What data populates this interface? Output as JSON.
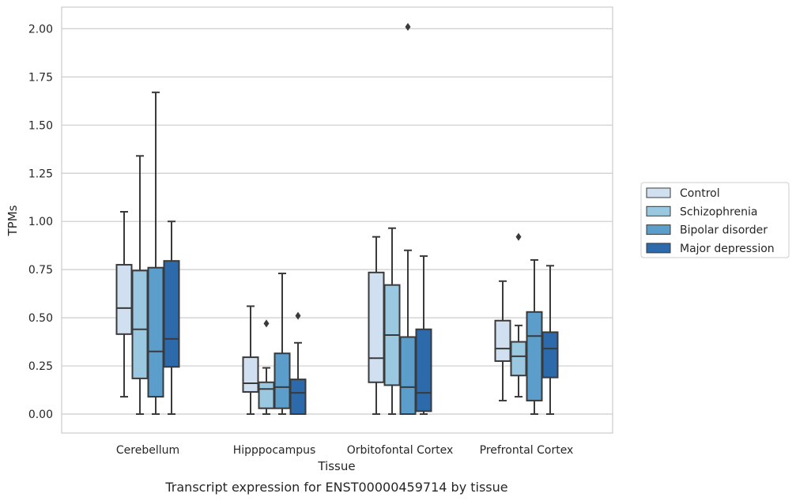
{
  "chart_data": {
    "type": "box",
    "caption": "Transcript expression for ENST00000459714 by tissue",
    "xlabel": "Tissue",
    "ylabel": "TPMs",
    "ylim": [
      -0.1,
      2.12
    ],
    "yticks": [
      "0.00",
      "0.25",
      "0.50",
      "0.75",
      "1.00",
      "1.25",
      "1.50",
      "1.75",
      "2.00"
    ],
    "categories": [
      "Cerebellum",
      "Hipppocampus",
      "Orbitofontal Cortex",
      "Prefrontal Cortex"
    ],
    "legend_position": "right",
    "grid": true,
    "series": [
      {
        "name": "Control",
        "color": "#d0e0f0",
        "boxes": [
          {
            "whislo": 0.09,
            "q1": 0.415,
            "med": 0.55,
            "q3": 0.775,
            "whishi": 1.05,
            "fliers": []
          },
          {
            "whislo": 0.0,
            "q1": 0.115,
            "med": 0.16,
            "q3": 0.295,
            "whishi": 0.56,
            "fliers": []
          },
          {
            "whislo": 0.0,
            "q1": 0.165,
            "med": 0.29,
            "q3": 0.735,
            "whishi": 0.92,
            "fliers": []
          },
          {
            "whislo": 0.07,
            "q1": 0.275,
            "med": 0.34,
            "q3": 0.485,
            "whishi": 0.69,
            "fliers": []
          }
        ]
      },
      {
        "name": "Schizophrenia",
        "color": "#9ac8e0",
        "boxes": [
          {
            "whislo": 0.0,
            "q1": 0.185,
            "med": 0.44,
            "q3": 0.745,
            "whishi": 1.34,
            "fliers": []
          },
          {
            "whislo": 0.0,
            "q1": 0.03,
            "med": 0.13,
            "q3": 0.165,
            "whishi": 0.24,
            "fliers": [
              0.47
            ]
          },
          {
            "whislo": 0.0,
            "q1": 0.15,
            "med": 0.41,
            "q3": 0.67,
            "whishi": 0.965,
            "fliers": []
          },
          {
            "whislo": 0.09,
            "q1": 0.2,
            "med": 0.3,
            "q3": 0.375,
            "whishi": 0.46,
            "fliers": [
              0.92
            ]
          }
        ]
      },
      {
        "name": "Bipolar disorder",
        "color": "#5b9dcb",
        "boxes": [
          {
            "whislo": 0.0,
            "q1": 0.09,
            "med": 0.325,
            "q3": 0.76,
            "whishi": 1.67,
            "fliers": []
          },
          {
            "whislo": 0.0,
            "q1": 0.03,
            "med": 0.14,
            "q3": 0.315,
            "whishi": 0.73,
            "fliers": []
          },
          {
            "whislo": 0.0,
            "q1": 0.0,
            "med": 0.14,
            "q3": 0.4,
            "whishi": 0.85,
            "fliers": [
              2.01
            ]
          },
          {
            "whislo": 0.0,
            "q1": 0.07,
            "med": 0.405,
            "q3": 0.53,
            "whishi": 0.8,
            "fliers": []
          }
        ]
      },
      {
        "name": "Major depression",
        "color": "#2c6aab",
        "boxes": [
          {
            "whislo": 0.0,
            "q1": 0.245,
            "med": 0.39,
            "q3": 0.795,
            "whishi": 1.0,
            "fliers": []
          },
          {
            "whislo": 0.0,
            "q1": 0.0,
            "med": 0.11,
            "q3": 0.18,
            "whishi": 0.37,
            "fliers": [
              0.51
            ]
          },
          {
            "whislo": 0.0,
            "q1": 0.015,
            "med": 0.11,
            "q3": 0.44,
            "whishi": 0.82,
            "fliers": []
          },
          {
            "whislo": 0.0,
            "q1": 0.19,
            "med": 0.34,
            "q3": 0.425,
            "whishi": 0.77,
            "fliers": []
          }
        ]
      }
    ]
  }
}
